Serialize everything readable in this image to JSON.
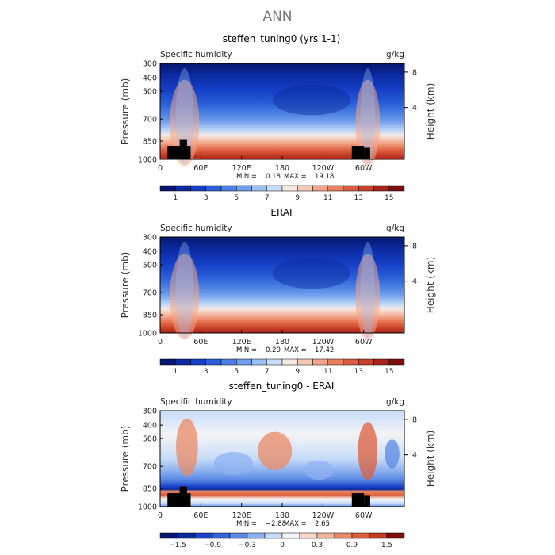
{
  "page": {
    "title": "ANN"
  },
  "chart_data": [
    {
      "type": "heatmap",
      "title": "steffen_tuning0 (yrs 1-1)",
      "left_label": "Specific humidity",
      "units": "g/kg",
      "ylabel": "Pressure (mb)",
      "y2label": "Height (km)",
      "xticks": [
        "0",
        "60E",
        "120E",
        "180",
        "120W",
        "60W"
      ],
      "yticks": [
        "300",
        "400",
        "500",
        "700",
        "850",
        "1000"
      ],
      "y2ticks": [
        "8",
        "4"
      ],
      "stats": {
        "min_label": "MIN =",
        "min": "0.18",
        "max_label": "MAX =",
        "max": "19.18"
      },
      "colorbar": {
        "labels": [
          "1",
          "3",
          "5",
          "7",
          "9",
          "11",
          "13",
          "15"
        ],
        "colors": [
          "#08166e",
          "#0a2aa0",
          "#143fc6",
          "#2a5fd8",
          "#4a80e4",
          "#6f9eec",
          "#9dbff4",
          "#c8dcf8",
          "#f4e8e2",
          "#f6c8b6",
          "#f2a58a",
          "#e8805e",
          "#dd5e3e",
          "#c8402a",
          "#a82418",
          "#7a0e0e"
        ]
      },
      "range": [
        0,
        19.18
      ]
    },
    {
      "type": "heatmap",
      "title": "ERAI",
      "left_label": "Specific humidity",
      "units": "g/kg",
      "ylabel": "Pressure (mb)",
      "y2label": "Height (km)",
      "xticks": [
        "0",
        "60E",
        "120E",
        "180",
        "120W",
        "60W"
      ],
      "yticks": [
        "300",
        "400",
        "500",
        "700",
        "850",
        "1000"
      ],
      "y2ticks": [
        "8",
        "4"
      ],
      "stats": {
        "min_label": "MIN =",
        "min": "0.20",
        "max_label": "MAX =",
        "max": "17.42"
      },
      "colorbar": {
        "labels": [
          "1",
          "3",
          "5",
          "7",
          "9",
          "11",
          "13",
          "15"
        ],
        "colors": [
          "#08166e",
          "#0a2aa0",
          "#143fc6",
          "#2a5fd8",
          "#4a80e4",
          "#6f9eec",
          "#9dbff4",
          "#c8dcf8",
          "#f4e8e2",
          "#f6c8b6",
          "#f2a58a",
          "#e8805e",
          "#dd5e3e",
          "#c8402a",
          "#a82418",
          "#7a0e0e"
        ]
      },
      "range": [
        0,
        17.42
      ]
    },
    {
      "type": "heatmap",
      "title": "steffen_tuning0 - ERAI",
      "left_label": "Specific humidity",
      "units": "g/kg",
      "ylabel": "Pressure (mb)",
      "y2label": "Height (km)",
      "xticks": [
        "0",
        "60E",
        "120E",
        "180",
        "120W",
        "60W"
      ],
      "yticks": [
        "300",
        "400",
        "500",
        "700",
        "850",
        "1000"
      ],
      "y2ticks": [
        "8",
        "4"
      ],
      "stats": {
        "min_label": "MIN =",
        "min": "−2.88",
        "max_label": "MAX =",
        "max": "2.65"
      },
      "colorbar": {
        "labels": [
          "−1.5",
          "−0.9",
          "−0.3",
          "0",
          "0.3",
          "0.9",
          "1.5"
        ],
        "colors": [
          "#08166e",
          "#0a2aa0",
          "#1a44c8",
          "#3264d8",
          "#5a88e6",
          "#8fb2f0",
          "#c6dcf8",
          "#f4f4f6",
          "#f8d8c8",
          "#f2b498",
          "#ea8a66",
          "#dc5e3c",
          "#c03a22",
          "#7a0e0e"
        ]
      },
      "range": [
        -2.88,
        2.65
      ]
    }
  ]
}
